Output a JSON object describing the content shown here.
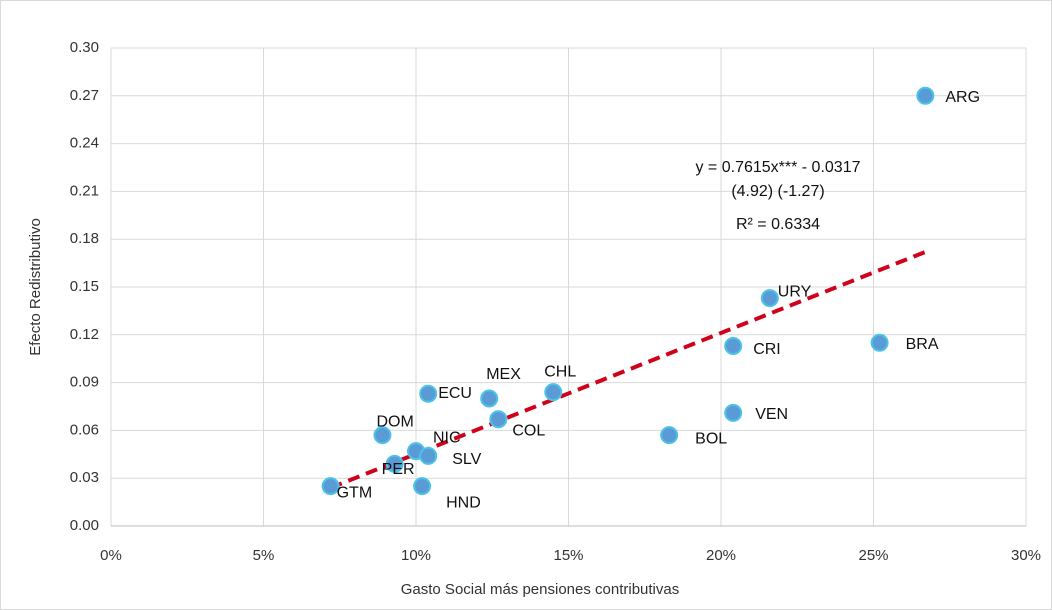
{
  "chart_data": {
    "type": "scatter",
    "xlabel": "Gasto Social más pensiones contributivas",
    "ylabel": "Efecto Redistributivo",
    "xlim": [
      0,
      30
    ],
    "xticks": [
      {
        "value": 0,
        "label": "0%"
      },
      {
        "value": 5,
        "label": "5%"
      },
      {
        "value": 10,
        "label": "10%"
      },
      {
        "value": 15,
        "label": "15%"
      },
      {
        "value": 20,
        "label": "20%"
      },
      {
        "value": 25,
        "label": "25%"
      },
      {
        "value": 30,
        "label": "30%"
      }
    ],
    "ylim": [
      0,
      0.3
    ],
    "yticks": [
      {
        "value": 0,
        "label": "0.00"
      },
      {
        "value": 0.03,
        "label": "0.03"
      },
      {
        "value": 0.06,
        "label": "0.06"
      },
      {
        "value": 0.09,
        "label": "0.09"
      },
      {
        "value": 0.12,
        "label": "0.12"
      },
      {
        "value": 0.15,
        "label": "0.15"
      },
      {
        "value": 0.18,
        "label": "0.18"
      },
      {
        "value": 0.21,
        "label": "0.21"
      },
      {
        "value": 0.24,
        "label": "0.24"
      },
      {
        "value": 0.27,
        "label": "0.27"
      },
      {
        "value": 0.3,
        "label": "0.30"
      }
    ],
    "grid": true,
    "color": "#5b9bd5",
    "labels": [
      "ARG",
      "BRA",
      "URY",
      "CRI",
      "VEN",
      "BOL",
      "CHL",
      "MEX",
      "COL",
      "ECU",
      "DOM",
      "NIC",
      "SLV",
      "PER",
      "GTM",
      "HND"
    ],
    "x": [
      26.7,
      25.2,
      21.6,
      20.4,
      20.4,
      18.3,
      14.5,
      12.4,
      12.7,
      10.4,
      8.9,
      10.0,
      10.4,
      9.3,
      7.2,
      10.2
    ],
    "values": [
      0.27,
      0.115,
      0.143,
      0.113,
      0.071,
      0.057,
      0.084,
      0.08,
      0.067,
      0.083,
      0.057,
      0.047,
      0.044,
      0.039,
      0.025,
      0.025
    ],
    "trendline": {
      "color": "#d0021b",
      "x": [
        7.2,
        26.7
      ],
      "values": [
        0.024,
        0.172
      ]
    },
    "annotations": [
      "y = 0.7615x*** - 0.0317",
      "(4.92)     (-1.27)",
      "R² = 0.6334"
    ]
  }
}
